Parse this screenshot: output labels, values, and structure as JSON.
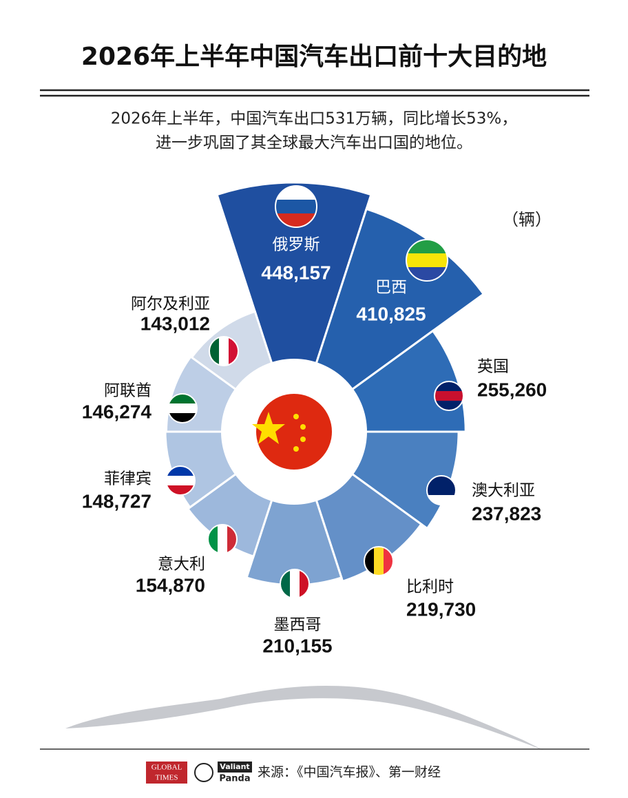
{
  "chart_data": {
    "type": "radial-bar",
    "title": "2026年上半年中国汽车出口前十大目的地",
    "subtitle": [
      "2026年上半年，中国汽车出口531万辆，同比增长53%，",
      "进一步巩固了其全球最大汽车出口国的地位。"
    ],
    "unit": "（辆）",
    "categories": [
      "俄罗斯",
      "巴西",
      "英国",
      "澳大利亚",
      "比利时",
      "墨西哥",
      "意大利",
      "菲律宾",
      "阿联酋",
      "阿尔及利亚"
    ],
    "values": [
      448157,
      410825,
      255260,
      237823,
      219730,
      210155,
      154870,
      148727,
      146274,
      143012
    ],
    "value_labels": [
      "448,157",
      "410,825",
      "255,260",
      "237,823",
      "219,730",
      "210,155",
      "154,870",
      "148,727",
      "146,274",
      "143,012"
    ],
    "colors": [
      "#1f4fa0",
      "#2560ad",
      "#2e6cb6",
      "#4a80c0",
      "#6490c8",
      "#7ea3d1",
      "#9db8dc",
      "#afc5e2",
      "#bdcee6",
      "#d0dae9"
    ],
    "source": "来源：《中国汽车报》、第一财经",
    "logos": [
      "GLOBAL",
      "TIMES",
      "Valiant",
      "Panda"
    ]
  }
}
